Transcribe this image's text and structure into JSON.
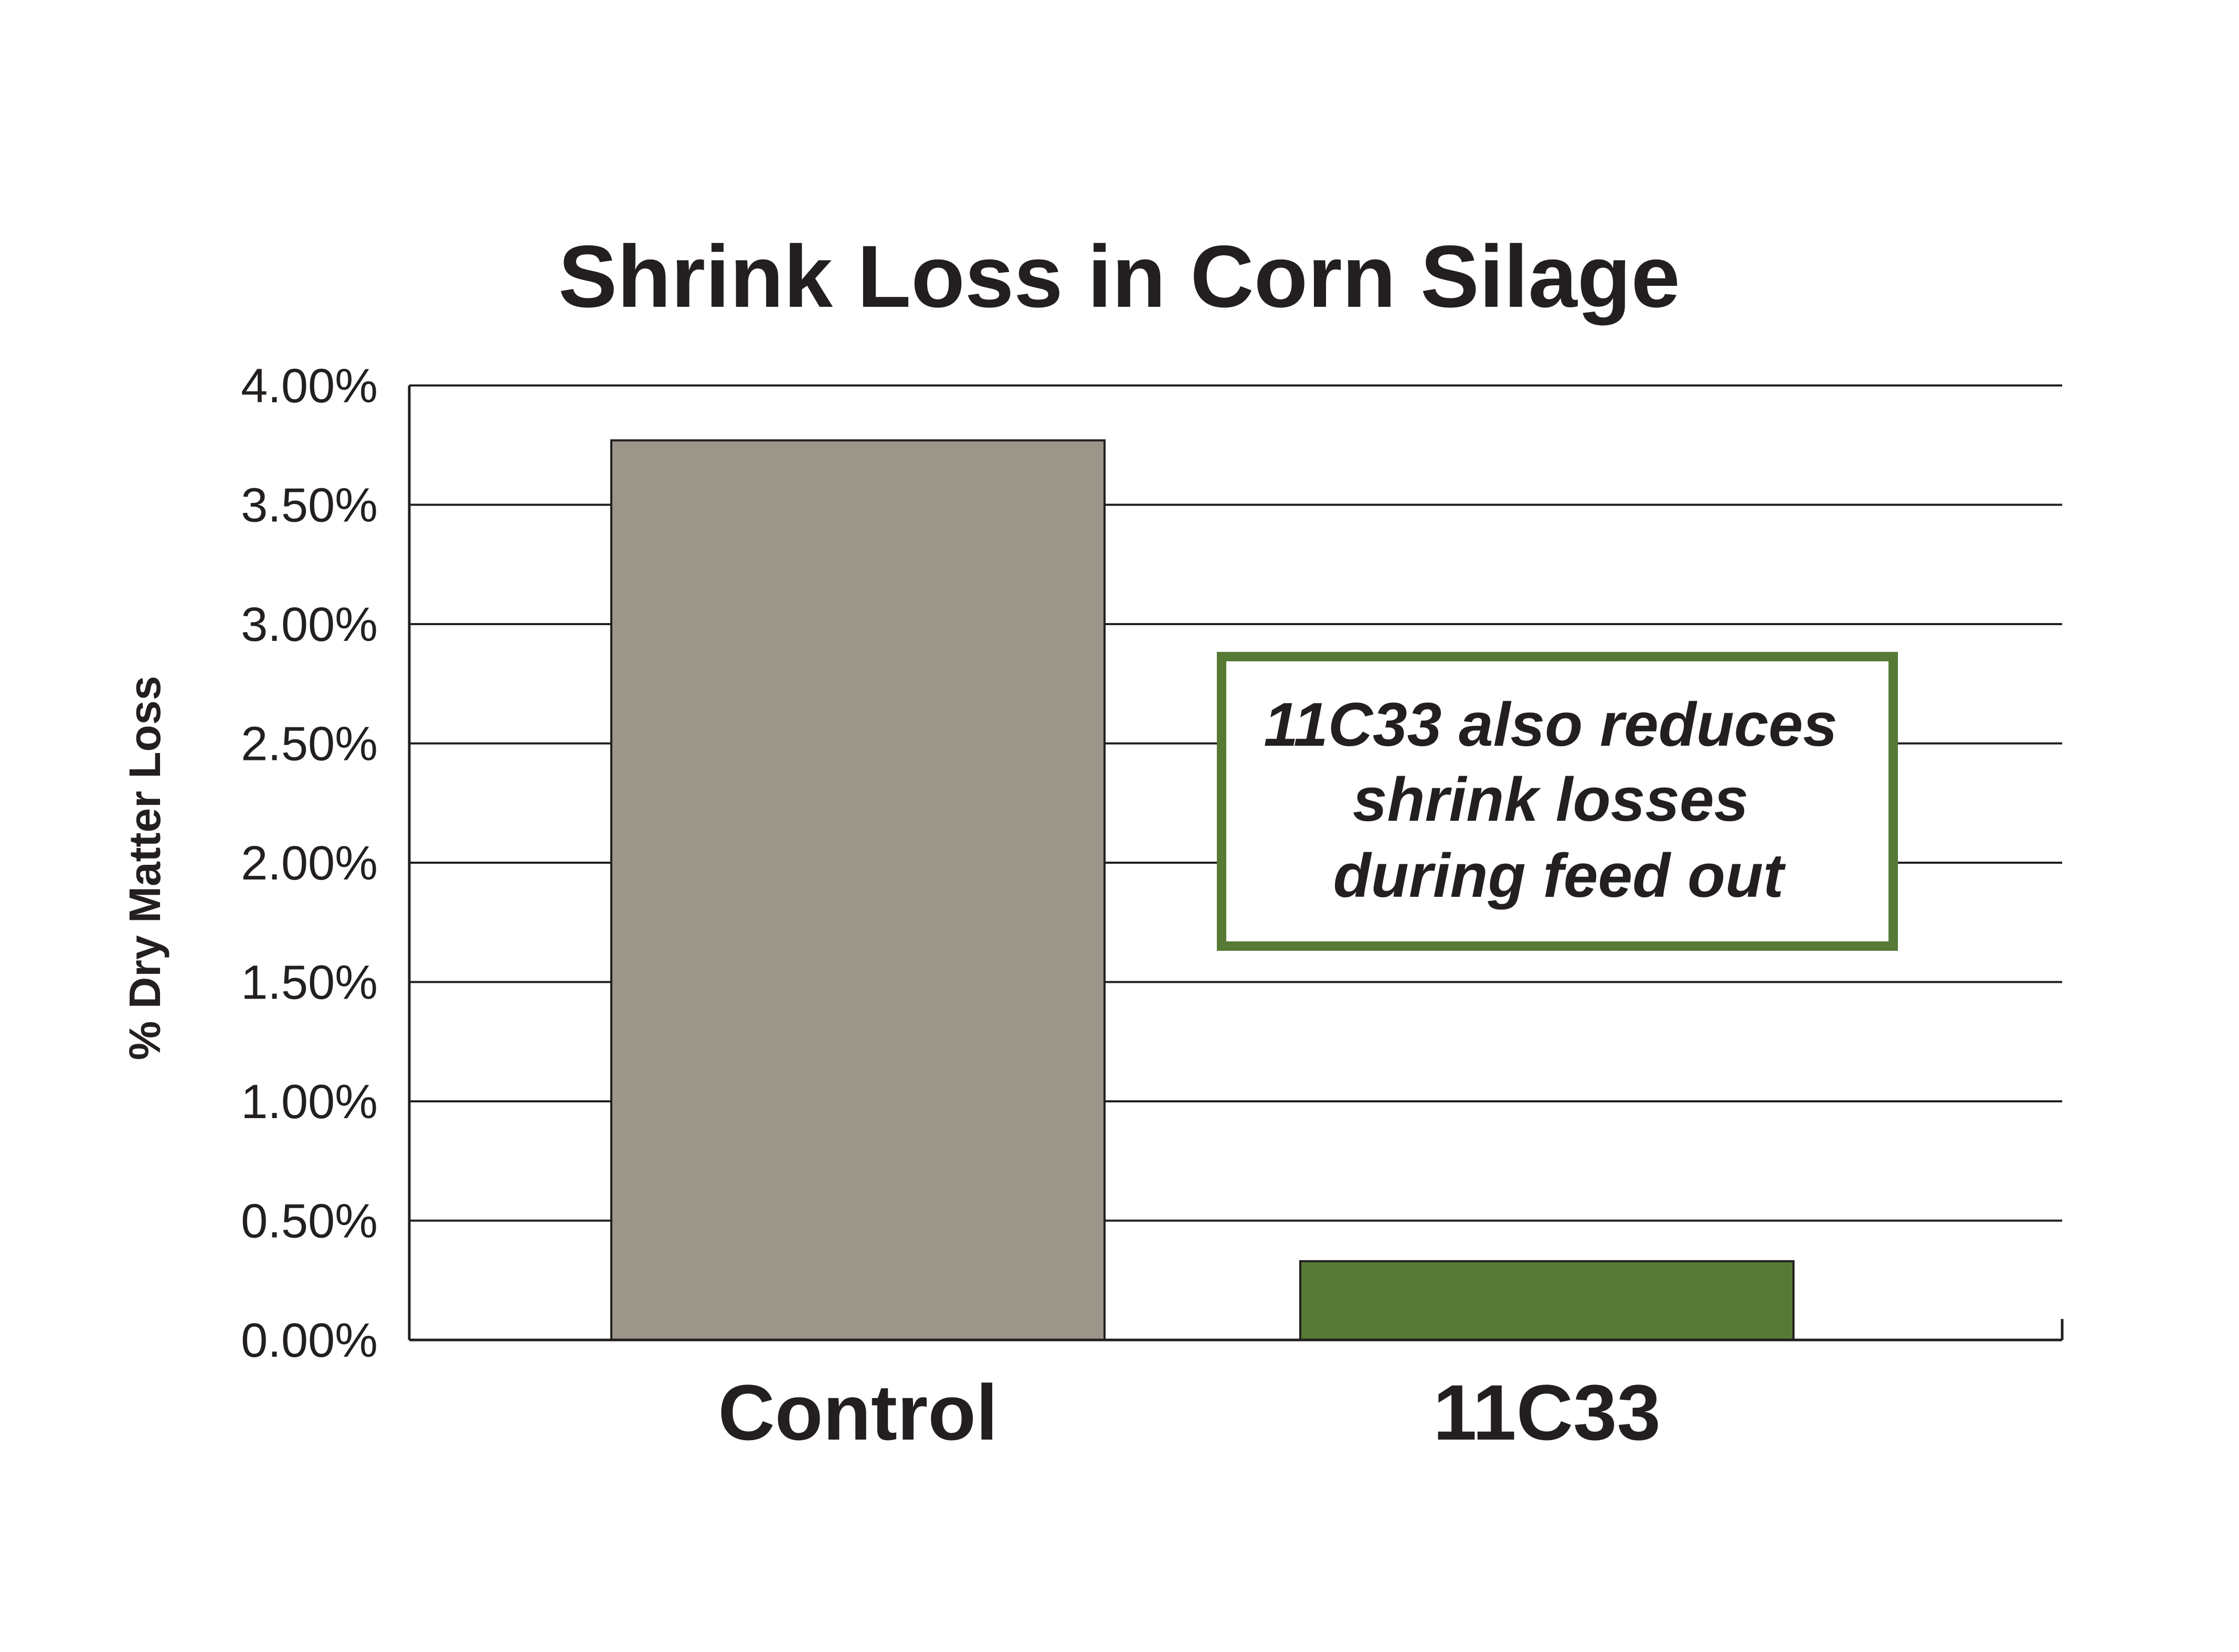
{
  "chart_data": {
    "type": "bar",
    "title": "Shrink Loss in Corn Silage",
    "ylabel": "% Dry Matter Loss",
    "xlabel": "",
    "categories": [
      "Control",
      "11C33"
    ],
    "values": [
      3.77,
      0.33
    ],
    "ylim": [
      0,
      4.0
    ],
    "yticks": [
      "0.00%",
      "0.50%",
      "1.00%",
      "1.50%",
      "2.00%",
      "2.50%",
      "3.00%",
      "3.50%",
      "4.00%"
    ],
    "ytick_values": [
      0,
      0.5,
      1.0,
      1.5,
      2.0,
      2.5,
      3.0,
      3.5,
      4.0
    ],
    "grid": true,
    "bar_colors": [
      "#9c958a",
      "#567a36"
    ],
    "annotation": {
      "lines": [
        "11C33 also reduces",
        "shrink losses",
        "during feed out"
      ],
      "border_color": "#567a36"
    }
  }
}
